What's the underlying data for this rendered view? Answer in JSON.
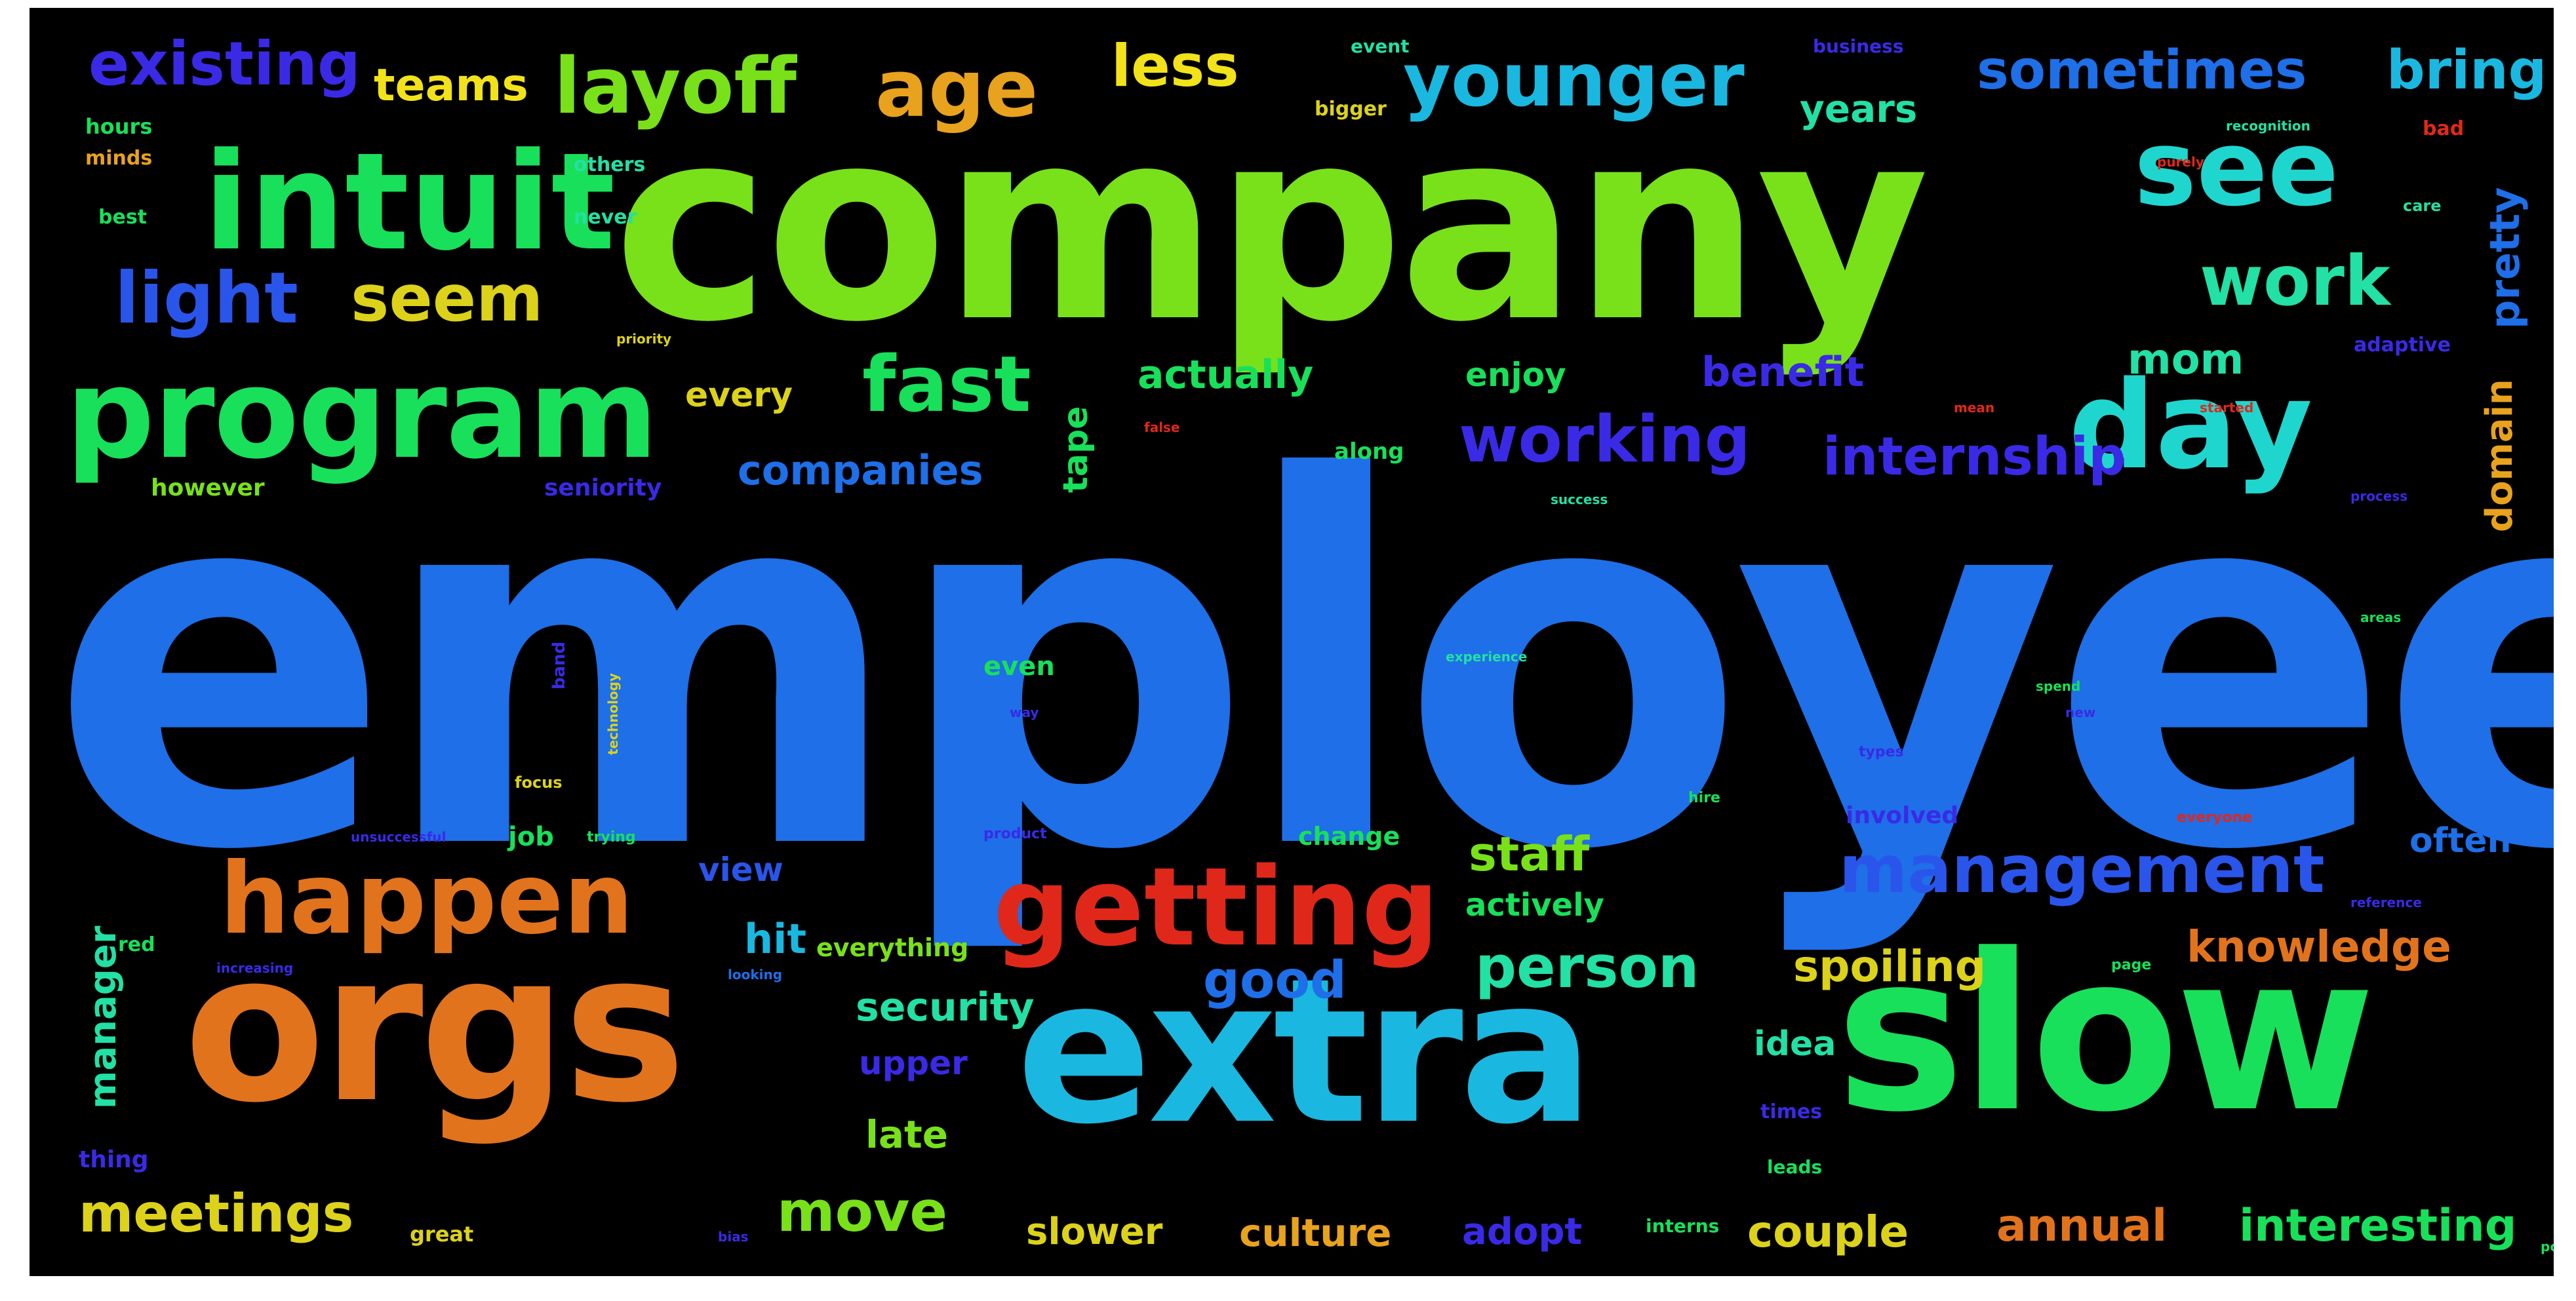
{
  "palette": {
    "background": "#000000",
    "frame": "#ffffff",
    "blue": "#1e6fe8",
    "sky": "#1ab8e0",
    "cyan": "#1fd6cf",
    "lime": "#78e11a",
    "green": "#18e05a",
    "teal": "#23e0a4",
    "orange": "#e2731d",
    "amber": "#e8a21d",
    "gold": "#dcd21a",
    "yellow": "#f2e21a",
    "red": "#e0281a",
    "indigo": "#3a2ae6",
    "violet": "#5a1ee0",
    "royal": "#2a55ea"
  },
  "words": [
    {
      "text": "employee",
      "color": "blue"
    },
    {
      "text": "company",
      "color": "lime"
    },
    {
      "text": "orgs",
      "color": "orange"
    },
    {
      "text": "extra",
      "color": "sky"
    },
    {
      "text": "slow",
      "color": "green"
    },
    {
      "text": "intuit",
      "color": "green"
    },
    {
      "text": "program",
      "color": "green"
    },
    {
      "text": "happen",
      "color": "orange"
    },
    {
      "text": "getting",
      "color": "red"
    },
    {
      "text": "day",
      "color": "cyan"
    },
    {
      "text": "see",
      "color": "cyan"
    },
    {
      "text": "layoff",
      "color": "lime"
    },
    {
      "text": "age",
      "color": "amber"
    },
    {
      "text": "younger",
      "color": "sky"
    },
    {
      "text": "working",
      "color": "indigo"
    },
    {
      "text": "management",
      "color": "royal"
    },
    {
      "text": "fast",
      "color": "green"
    },
    {
      "text": "seem",
      "color": "gold"
    },
    {
      "text": "light",
      "color": "royal"
    },
    {
      "text": "existing",
      "color": "indigo"
    },
    {
      "text": "sometimes",
      "color": "blue"
    },
    {
      "text": "bring",
      "color": "sky"
    },
    {
      "text": "less",
      "color": "yellow"
    },
    {
      "text": "teams",
      "color": "yellow"
    },
    {
      "text": "work",
      "color": "teal"
    },
    {
      "text": "internship",
      "color": "indigo"
    },
    {
      "text": "person",
      "color": "teal"
    },
    {
      "text": "meetings",
      "color": "gold"
    },
    {
      "text": "move",
      "color": "lime"
    },
    {
      "text": "good",
      "color": "blue"
    },
    {
      "text": "knowledge",
      "color": "orange"
    },
    {
      "text": "interesting",
      "color": "green"
    },
    {
      "text": "annual",
      "color": "orange"
    },
    {
      "text": "couple",
      "color": "gold"
    },
    {
      "text": "staff",
      "color": "lime"
    },
    {
      "text": "spoiling",
      "color": "gold"
    },
    {
      "text": "security",
      "color": "teal"
    },
    {
      "text": "companies",
      "color": "blue"
    },
    {
      "text": "actually",
      "color": "green"
    },
    {
      "text": "benefit",
      "color": "indigo"
    },
    {
      "text": "mom",
      "color": "teal"
    },
    {
      "text": "years",
      "color": "teal"
    },
    {
      "text": "every",
      "color": "gold"
    },
    {
      "text": "enjoy",
      "color": "green"
    },
    {
      "text": "view",
      "color": "royal"
    },
    {
      "text": "hit",
      "color": "sky"
    },
    {
      "text": "actively",
      "color": "green"
    },
    {
      "text": "upper",
      "color": "indigo"
    },
    {
      "text": "late",
      "color": "lime"
    },
    {
      "text": "idea",
      "color": "teal"
    },
    {
      "text": "slower",
      "color": "gold"
    },
    {
      "text": "culture",
      "color": "amber"
    },
    {
      "text": "adopt",
      "color": "indigo"
    },
    {
      "text": "often",
      "color": "blue"
    },
    {
      "text": "pretty",
      "color": "blue"
    },
    {
      "text": "domain",
      "color": "amber"
    },
    {
      "text": "manager",
      "color": "teal"
    },
    {
      "text": "tape",
      "color": "green"
    },
    {
      "text": "everything",
      "color": "lime"
    },
    {
      "text": "job",
      "color": "green"
    },
    {
      "text": "change",
      "color": "green"
    },
    {
      "text": "involved",
      "color": "indigo"
    },
    {
      "text": "however",
      "color": "lime"
    },
    {
      "text": "seniority",
      "color": "indigo"
    },
    {
      "text": "along",
      "color": "green"
    },
    {
      "text": "even",
      "color": "green"
    },
    {
      "text": "thing",
      "color": "indigo"
    },
    {
      "text": "great",
      "color": "gold"
    },
    {
      "text": "hours",
      "color": "green"
    },
    {
      "text": "minds",
      "color": "amber"
    },
    {
      "text": "best",
      "color": "green"
    },
    {
      "text": "others",
      "color": "teal"
    },
    {
      "text": "never",
      "color": "teal"
    },
    {
      "text": "event",
      "color": "teal"
    },
    {
      "text": "bigger",
      "color": "gold"
    },
    {
      "text": "business",
      "color": "indigo"
    },
    {
      "text": "adaptive",
      "color": "indigo"
    },
    {
      "text": "bad",
      "color": "red"
    },
    {
      "text": "red",
      "color": "green"
    },
    {
      "text": "times",
      "color": "indigo"
    },
    {
      "text": "leads",
      "color": "green"
    },
    {
      "text": "interns",
      "color": "green"
    },
    {
      "text": "trying",
      "color": "green"
    },
    {
      "text": "types",
      "color": "indigo"
    },
    {
      "text": "hire",
      "color": "green"
    },
    {
      "text": "band",
      "color": "indigo"
    },
    {
      "text": "care",
      "color": "teal"
    },
    {
      "text": "everyone",
      "color": "red"
    },
    {
      "text": "product",
      "color": "indigo"
    },
    {
      "text": "mean",
      "color": "red"
    },
    {
      "text": "false",
      "color": "red"
    },
    {
      "text": "success",
      "color": "teal"
    },
    {
      "text": "page",
      "color": "green"
    },
    {
      "text": "recognition",
      "color": "teal"
    },
    {
      "text": "purely",
      "color": "red"
    },
    {
      "text": "priority",
      "color": "gold"
    },
    {
      "text": "looking",
      "color": "blue"
    },
    {
      "text": "unsuccessful",
      "color": "indigo"
    },
    {
      "text": "technology",
      "color": "gold"
    },
    {
      "text": "increasing",
      "color": "indigo"
    },
    {
      "text": "reference",
      "color": "indigo"
    },
    {
      "text": "focus",
      "color": "gold"
    },
    {
      "text": "areas",
      "color": "green"
    },
    {
      "text": "spend",
      "color": "green"
    },
    {
      "text": "experience",
      "color": "teal"
    },
    {
      "text": "started",
      "color": "red"
    },
    {
      "text": "process",
      "color": "indigo"
    },
    {
      "text": "pool",
      "color": "green"
    },
    {
      "text": "bias",
      "color": "indigo"
    },
    {
      "text": "way",
      "color": "indigo"
    },
    {
      "text": "new",
      "color": "indigo"
    }
  ]
}
